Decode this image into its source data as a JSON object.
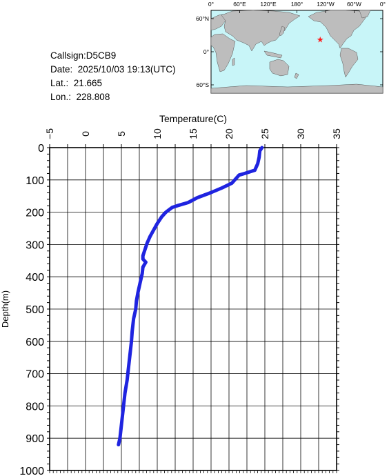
{
  "info": {
    "callsign": "Callsign:D5CB9",
    "date": "Date:  2025/10/03 19:13(UTC)",
    "lat": "Lat.:  21.665",
    "lon": "Lon.:  228.808"
  },
  "map": {
    "lon_ticks": [
      "0°",
      "60°E",
      "120°E",
      "180°",
      "120°W",
      "60°W",
      "0°"
    ],
    "lat_ticks": [
      "60°N",
      "0°",
      "60°S"
    ],
    "ocean_color": "#c8f5f8",
    "land_color": "#bdbdbd",
    "marker_color": "#ff1a1a",
    "marker_lon": 228.808,
    "marker_lat": 21.665
  },
  "chart_data": {
    "type": "line",
    "xlabel": "Temperature(C)",
    "ylabel": "Depth(m)",
    "xlim": [
      -5,
      35
    ],
    "ylim": [
      1000,
      0
    ],
    "x_ticks": [
      -5,
      0,
      5,
      10,
      15,
      20,
      25,
      30,
      35
    ],
    "y_ticks": [
      0,
      100,
      200,
      300,
      400,
      500,
      600,
      700,
      800,
      900,
      1000
    ],
    "grid": true,
    "line_color": "#1f24e0",
    "series": [
      {
        "x": [
          24.6,
          24.3,
          24.2,
          24.0,
          23.6,
          22.2,
          21.4,
          21.0,
          20.4,
          19.0,
          17.4,
          15.6,
          14.3,
          12.8,
          12.1,
          11.8,
          11.2,
          10.6,
          10.0,
          9.5,
          9.0,
          8.6,
          8.3,
          8.0,
          8.0,
          8.4,
          8.0,
          7.9,
          7.6,
          7.3,
          7.1,
          7.0,
          6.7,
          6.5,
          6.4,
          6.2,
          6.0,
          5.8,
          5.5,
          5.3,
          5.0,
          4.8,
          4.6
        ],
        "y": [
          0,
          10,
          30,
          50,
          70,
          80,
          85,
          95,
          110,
          125,
          140,
          155,
          170,
          180,
          185,
          190,
          200,
          215,
          235,
          255,
          275,
          295,
          315,
          335,
          345,
          355,
          370,
          390,
          420,
          450,
          475,
          500,
          530,
          570,
          600,
          640,
          680,
          720,
          760,
          800,
          860,
          900,
          920
        ]
      }
    ]
  }
}
